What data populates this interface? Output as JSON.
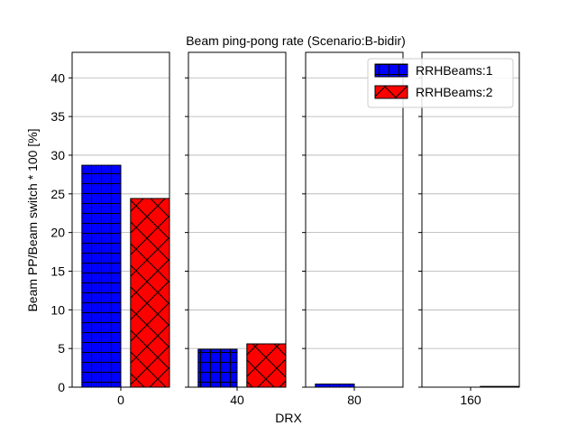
{
  "chart_data": {
    "type": "bar",
    "title": "Beam ping-pong rate (Scenario:B-bidir)",
    "xlabel": "DRX",
    "ylabel": "Beam PP/Beam switch * 100 [%]",
    "categories": [
      "0",
      "40",
      "80",
      "160"
    ],
    "series": [
      {
        "name": "RRHBeams:1",
        "values": [
          28.7,
          4.9,
          0.4,
          0.0
        ],
        "color": "#0000ff",
        "hatch": "grid"
      },
      {
        "name": "RRHBeams:2",
        "values": [
          24.4,
          5.6,
          0.0,
          0.1
        ],
        "color": "#ff0000",
        "hatch": "cross"
      }
    ],
    "ylim": [
      0,
      43.3
    ],
    "yticks": [
      0,
      5,
      10,
      15,
      20,
      25,
      30,
      35,
      40
    ],
    "grid": "horizontal",
    "legend_position": "top-right",
    "sharey": true
  }
}
